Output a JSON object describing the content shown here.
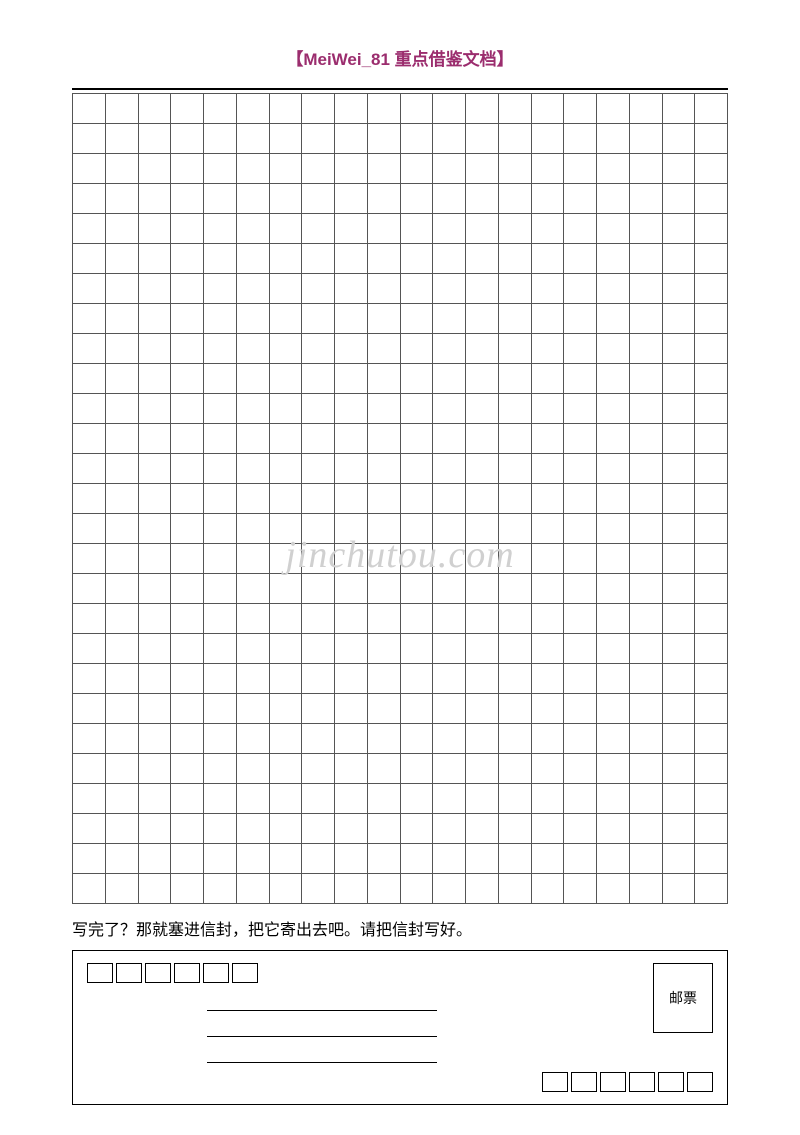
{
  "header": {
    "title": "【MeiWei_81 重点借鉴文档】",
    "color": "#9b2d6e"
  },
  "writingGrid": {
    "columns": 20,
    "rows": 27,
    "cellBorderColor": "#555555",
    "topBorderColor": "#000000"
  },
  "instruction": {
    "text": "写完了？那就塞进信封，把它寄出去吧。请把信封写好。"
  },
  "envelope": {
    "topPostalBoxCount": 6,
    "bottomPostalBoxCount": 6,
    "addressLineCount": 3,
    "stampLabel": "邮票"
  },
  "watermark": {
    "text": "jinchutou.com",
    "color": "#d0d0d0"
  }
}
